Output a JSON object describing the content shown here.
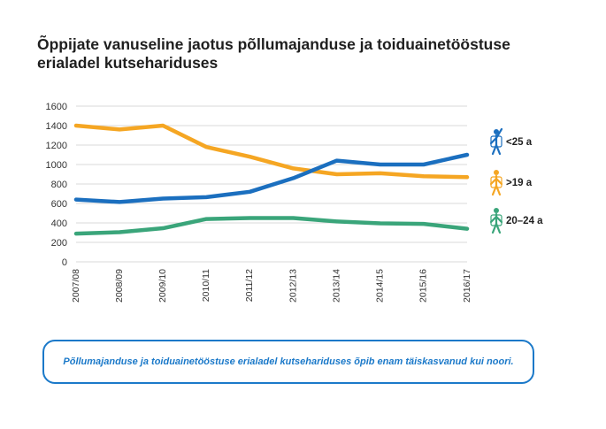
{
  "title": "Õppijate vanuseline jaotus põllumajanduse ja toiduainetööstuse erialadel kutsehariduses",
  "note": "Põllumajanduse ja toiduainetööstuse erialadel kutsehariduses õpib enam täiskasvanud kui noori.",
  "chart_data": {
    "type": "line",
    "x": [
      "2007/08",
      "2008/09",
      "2009/10",
      "2010/11",
      "2011/12",
      "2012/13",
      "2013/14",
      "2014/15",
      "2015/16",
      "2016/17"
    ],
    "yticks": [
      0,
      200,
      400,
      600,
      800,
      1000,
      1200,
      1400,
      1600
    ],
    "ylim": [
      0,
      1600
    ],
    "grid": true,
    "legend_position": "right",
    "series": [
      {
        "name": ">19 a",
        "color": "#f5a623",
        "icon": "adult-figure-icon",
        "values": [
          1400,
          1360,
          1400,
          1180,
          1080,
          960,
          900,
          910,
          880,
          870
        ]
      },
      {
        "name": "<25 a",
        "color": "#1b6fbf",
        "icon": "young-figure-raised-arm-icon",
        "values": [
          640,
          615,
          650,
          665,
          720,
          860,
          1040,
          1000,
          1000,
          1100
        ]
      },
      {
        "name": "20–24 a",
        "color": "#3aa57a",
        "icon": "young-figure-icon",
        "values": [
          290,
          305,
          345,
          440,
          450,
          450,
          415,
          395,
          390,
          340
        ]
      }
    ]
  }
}
